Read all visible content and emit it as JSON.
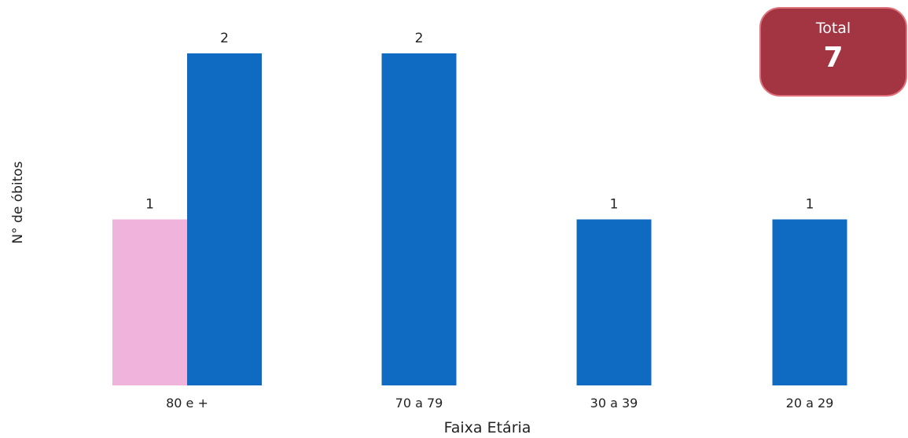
{
  "total_card": {
    "label": "Total",
    "value": "7"
  },
  "chart_data": {
    "type": "bar",
    "categories": [
      "80 e +",
      "70 a 79",
      "30 a 39",
      "20 a 29"
    ],
    "series": [
      {
        "values": [
          1,
          null,
          null,
          null
        ],
        "color": "#f0b3dc"
      },
      {
        "values": [
          2,
          2,
          1,
          1
        ],
        "color": "#0f6bc2"
      }
    ],
    "xlabel": "Faixa Etária",
    "ylabel": "N° de óbitos",
    "ylim": [
      0,
      2
    ],
    "grid": false,
    "data_labels": true
  }
}
